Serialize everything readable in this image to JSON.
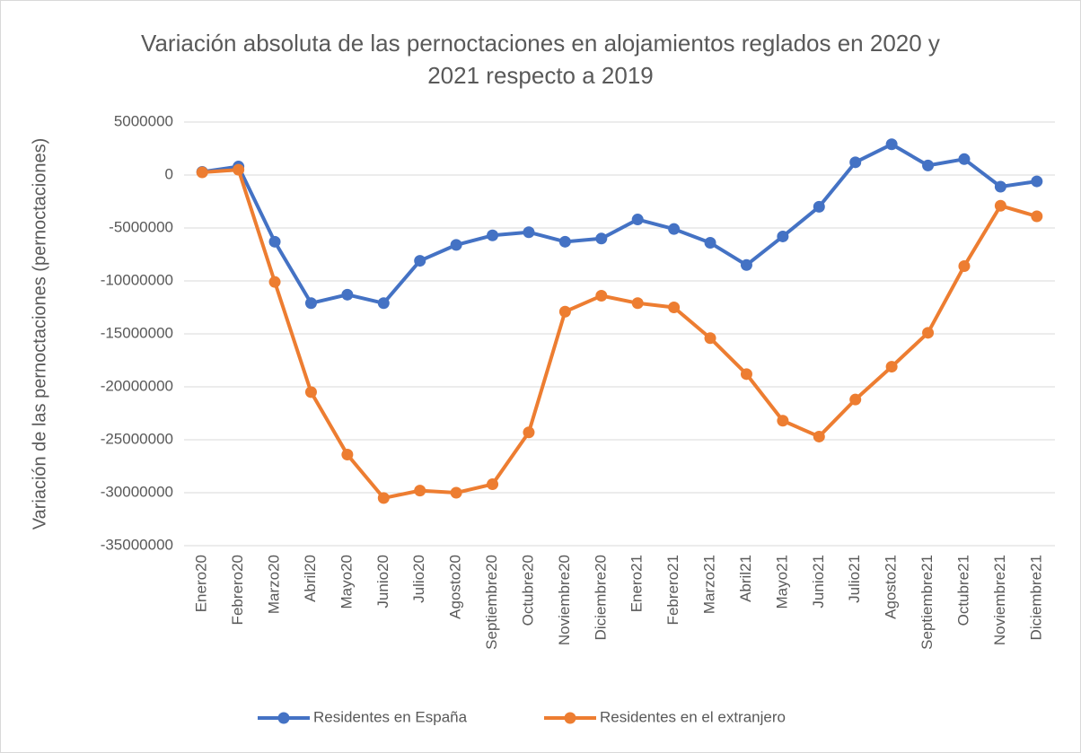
{
  "chart_data": {
    "type": "line",
    "title": "Variación absoluta de las pernoctaciones en alojamientos reglados en 2020 y 2021 respecto a 2019",
    "y_label": "Variación de las pernoctaciones (pernoctaciones)",
    "categories": [
      "Enero20",
      "Febrero20",
      "Marzo20",
      "Abril20",
      "Mayo20",
      "Junio20",
      "Julio20",
      "Agosto20",
      "Septiembre20",
      "Octubre20",
      "Noviembre20",
      "Diciembre20",
      "Enero21",
      "Febrero21",
      "Marzo21",
      "Abril21",
      "Mayo21",
      "Junio21",
      "Julio21",
      "Agosto21",
      "Septiembre21",
      "Octubre21",
      "Noviembre21",
      "Diciembre21"
    ],
    "series": [
      {
        "name": "Residentes en España",
        "color": "#4472c4",
        "values": [
          300000,
          800000,
          -6300000,
          -12100000,
          -11300000,
          -12100000,
          -8100000,
          -6600000,
          -5700000,
          -5400000,
          -6300000,
          -6000000,
          -4200000,
          -5100000,
          -6400000,
          -8500000,
          -5800000,
          -3000000,
          1200000,
          2900000,
          900000,
          1500000,
          -1100000,
          -600000
        ]
      },
      {
        "name": "Residentes en el extranjero",
        "color": "#ed7d31",
        "values": [
          250000,
          500000,
          -10100000,
          -20500000,
          -26400000,
          -30500000,
          -29800000,
          -30000000,
          -29200000,
          -24300000,
          -12900000,
          -11400000,
          -12100000,
          -12500000,
          -15400000,
          -18800000,
          -23200000,
          -24700000,
          -21200000,
          -18100000,
          -14900000,
          -8600000,
          -2900000,
          -3900000
        ]
      }
    ],
    "ylim": [
      -35000000,
      5000000
    ],
    "yticks": [
      -35000000,
      -30000000,
      -25000000,
      -20000000,
      -15000000,
      -10000000,
      -5000000,
      0,
      5000000
    ],
    "grid": true,
    "legend": "bottom"
  }
}
